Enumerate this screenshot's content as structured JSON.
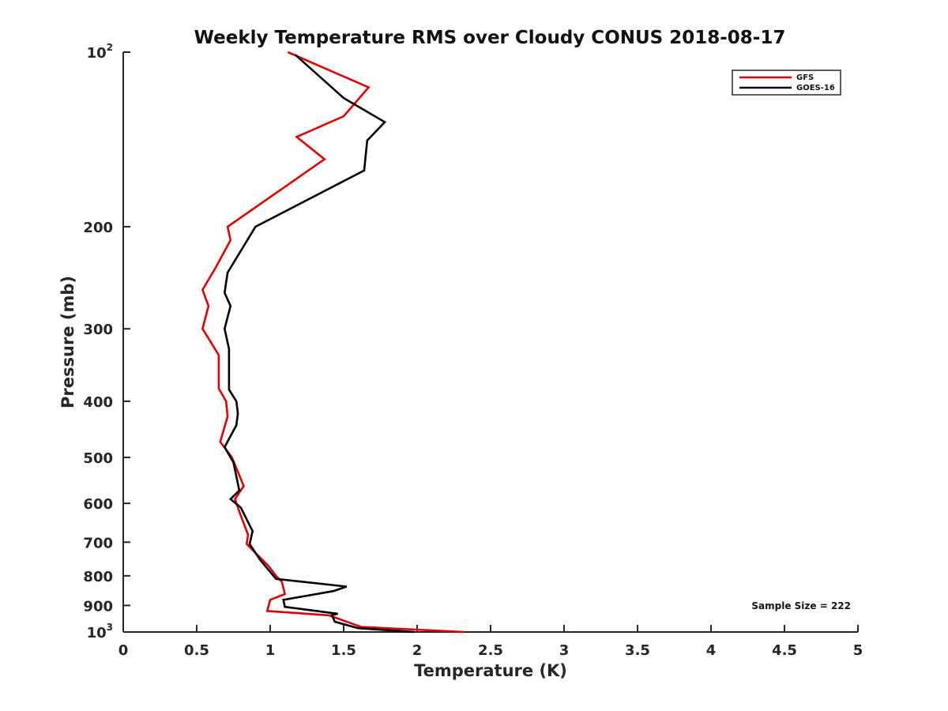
{
  "chart_data": {
    "type": "line",
    "title": "Weekly Temperature RMS over Cloudy CONUS 2018-08-17",
    "xlabel": "Temperature (K)",
    "ylabel": "Pressure (mb)",
    "xlim": [
      0,
      5
    ],
    "ylim": [
      100,
      1000
    ],
    "y_scale": "log",
    "y_reversed": true,
    "grid": false,
    "legend_position": "top-right",
    "x_ticks": [
      "0",
      "0.5",
      "1",
      "1.5",
      "2",
      "2.5",
      "3",
      "3.5",
      "4",
      "4.5",
      "5"
    ],
    "y_ticks": [
      {
        "value": 100,
        "base": "10",
        "exp": "2"
      },
      {
        "value": 200,
        "base": "200",
        "exp": ""
      },
      {
        "value": 300,
        "base": "300",
        "exp": ""
      },
      {
        "value": 400,
        "base": "400",
        "exp": ""
      },
      {
        "value": 500,
        "base": "500",
        "exp": ""
      },
      {
        "value": 600,
        "base": "600",
        "exp": ""
      },
      {
        "value": 700,
        "base": "700",
        "exp": ""
      },
      {
        "value": 800,
        "base": "800",
        "exp": ""
      },
      {
        "value": 900,
        "base": "900",
        "exp": ""
      },
      {
        "value": 1000,
        "base": "10",
        "exp": "3"
      }
    ],
    "annotation": "Sample Size = 222",
    "series": [
      {
        "name": "GFS",
        "color": "#e00000",
        "points": [
          [
            1.12,
            100
          ],
          [
            1.67,
            115
          ],
          [
            1.5,
            129
          ],
          [
            1.18,
            140
          ],
          [
            1.37,
            153
          ],
          [
            0.71,
            200
          ],
          [
            0.73,
            211
          ],
          [
            0.63,
            235
          ],
          [
            0.54,
            257
          ],
          [
            0.58,
            274
          ],
          [
            0.54,
            300
          ],
          [
            0.65,
            333
          ],
          [
            0.65,
            380
          ],
          [
            0.7,
            400
          ],
          [
            0.71,
            425
          ],
          [
            0.66,
            470
          ],
          [
            0.74,
            500
          ],
          [
            0.82,
            560
          ],
          [
            0.76,
            590
          ],
          [
            0.8,
            630
          ],
          [
            0.85,
            680
          ],
          [
            0.84,
            705
          ],
          [
            0.99,
            770
          ],
          [
            1.04,
            800
          ],
          [
            1.08,
            820
          ],
          [
            1.1,
            860
          ],
          [
            1.0,
            880
          ],
          [
            0.98,
            920
          ],
          [
            1.4,
            936
          ],
          [
            1.62,
            980
          ],
          [
            2.32,
            1000
          ]
        ]
      },
      {
        "name": "GOES-16",
        "color": "#000000",
        "points": [
          [
            1.17,
            101
          ],
          [
            1.5,
            120
          ],
          [
            1.78,
            132
          ],
          [
            1.66,
            142
          ],
          [
            1.64,
            160
          ],
          [
            0.9,
            200
          ],
          [
            0.71,
            240
          ],
          [
            0.69,
            260
          ],
          [
            0.73,
            274
          ],
          [
            0.69,
            300
          ],
          [
            0.72,
            325
          ],
          [
            0.72,
            382
          ],
          [
            0.77,
            400
          ],
          [
            0.78,
            420
          ],
          [
            0.77,
            440
          ],
          [
            0.69,
            480
          ],
          [
            0.75,
            510
          ],
          [
            0.79,
            570
          ],
          [
            0.73,
            590
          ],
          [
            0.8,
            610
          ],
          [
            0.88,
            670
          ],
          [
            0.86,
            705
          ],
          [
            0.93,
            750
          ],
          [
            1.04,
            810
          ],
          [
            1.52,
            835
          ],
          [
            1.43,
            850
          ],
          [
            1.09,
            880
          ],
          [
            1.1,
            905
          ],
          [
            1.46,
            930
          ],
          [
            1.42,
            935
          ],
          [
            1.44,
            960
          ],
          [
            1.6,
            985
          ],
          [
            1.98,
            1000
          ]
        ]
      }
    ]
  }
}
